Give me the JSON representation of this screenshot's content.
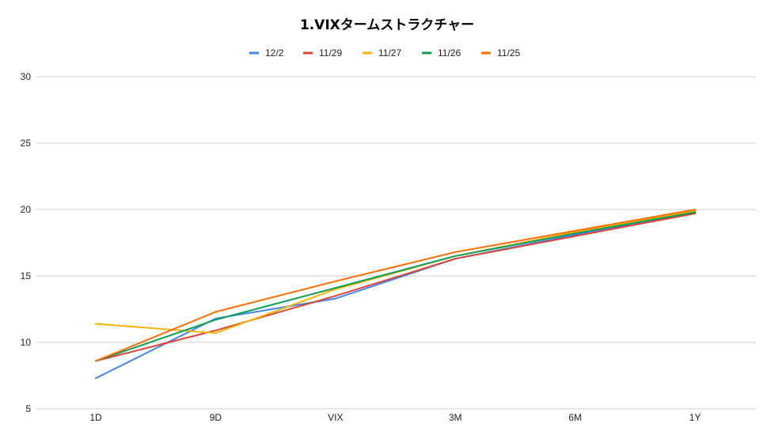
{
  "chart_data": {
    "type": "line",
    "title": "1.VIXタームストラクチャー",
    "xlabel": "",
    "ylabel": "",
    "categories": [
      "1D",
      "9D",
      "VIX",
      "3M",
      "6M",
      "1Y"
    ],
    "ylim": [
      5,
      30
    ],
    "yticks": [
      5,
      10,
      15,
      20,
      25,
      30
    ],
    "grid": true,
    "legend_position": "top",
    "series": [
      {
        "name": "12/2",
        "color": "#4285F4",
        "values": [
          7.3,
          11.8,
          13.3,
          16.3,
          18.1,
          19.8
        ]
      },
      {
        "name": "11/29",
        "color": "#DB4437",
        "values": [
          8.6,
          10.9,
          13.5,
          16.3,
          18.0,
          19.7
        ]
      },
      {
        "name": "11/27",
        "color": "#F4B400",
        "values": [
          11.4,
          10.7,
          14.0,
          16.5,
          18.3,
          19.9
        ]
      },
      {
        "name": "11/26",
        "color": "#0F9D58",
        "values": [
          8.6,
          11.7,
          14.1,
          16.5,
          18.2,
          19.8
        ]
      },
      {
        "name": "11/25",
        "color": "#FF6D01",
        "values": [
          8.6,
          12.3,
          14.6,
          16.8,
          18.4,
          20.0
        ]
      }
    ]
  }
}
